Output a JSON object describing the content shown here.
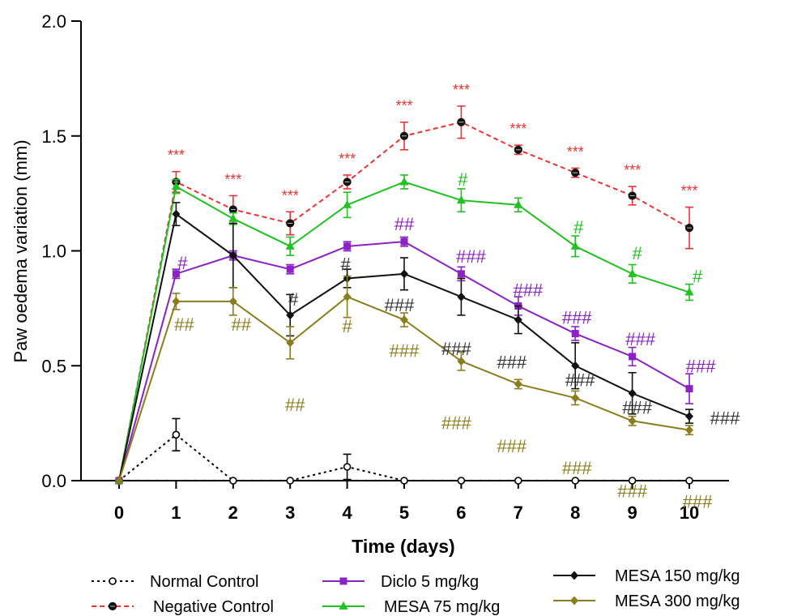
{
  "chart_data": {
    "type": "line",
    "title": "",
    "xlabel": "Time (days)",
    "ylabel": "Paw oedema variation (mm)",
    "ylim": [
      0,
      2.0
    ],
    "xlim": [
      0,
      10
    ],
    "y_ticks": [
      "0.0",
      "0.5",
      "1.0",
      "1.5",
      "2.0"
    ],
    "x_ticks": [
      "0",
      "1",
      "2",
      "3",
      "4",
      "5",
      "6",
      "7",
      "8",
      "9",
      "10"
    ],
    "x": [
      0,
      1,
      2,
      3,
      4,
      5,
      6,
      7,
      8,
      9,
      10
    ],
    "grid": false,
    "legend_position": "bottom",
    "series": [
      {
        "name": "Normal Control",
        "color": "#000000",
        "line": "dotted",
        "marker": "open-circle",
        "values": [
          0,
          0.2,
          0,
          0,
          0.06,
          0,
          0,
          0,
          0,
          0,
          0
        ],
        "errors": [
          0,
          0.07,
          0,
          0,
          0.055,
          0,
          0,
          0,
          0,
          0,
          0
        ],
        "annotations": [
          "",
          "",
          "",
          "",
          "",
          "",
          "",
          "",
          "",
          "",
          ""
        ]
      },
      {
        "name": "Negative Control",
        "color": "#ee3333",
        "line": "dashed",
        "marker": "filled-circle",
        "values": [
          0,
          1.3,
          1.18,
          1.12,
          1.3,
          1.5,
          1.56,
          1.44,
          1.34,
          1.24,
          1.1
        ],
        "errors": [
          0,
          0.045,
          0.06,
          0.05,
          0.03,
          0.06,
          0.07,
          0.02,
          0.02,
          0.04,
          0.09
        ],
        "annotations": [
          "",
          "***",
          "***",
          "***",
          "***",
          "***",
          "***",
          "***",
          "***",
          "***",
          "***"
        ]
      },
      {
        "name": "Diclo 5 mg/kg",
        "color": "#8b22c4",
        "line": "solid",
        "marker": "square",
        "values": [
          0,
          0.9,
          0.98,
          0.92,
          1.02,
          1.04,
          0.9,
          0.76,
          0.64,
          0.54,
          0.4
        ],
        "errors": [
          0,
          0.02,
          0.02,
          0.02,
          0.02,
          0.02,
          0.03,
          0.04,
          0.03,
          0.04,
          0.065
        ],
        "annotations": [
          "",
          "#",
          "",
          "",
          "",
          "##",
          "###",
          "###",
          "###",
          "###",
          "###"
        ]
      },
      {
        "name": "MESA 75 mg/kg",
        "color": "#22c022",
        "line": "solid",
        "marker": "triangle",
        "values": [
          0,
          1.28,
          1.14,
          1.02,
          1.2,
          1.3,
          1.22,
          1.2,
          1.02,
          0.9,
          0.82
        ],
        "errors": [
          0,
          0.03,
          0.025,
          0.04,
          0.055,
          0.03,
          0.05,
          0.03,
          0.045,
          0.04,
          0.035
        ],
        "annotations": [
          "",
          "",
          "",
          "",
          "",
          "",
          "#",
          "",
          "#",
          "#",
          "#"
        ]
      },
      {
        "name": "MESA 150 mg/kg",
        "color": "#111111",
        "line": "solid",
        "marker": "diamond",
        "values": [
          0,
          1.16,
          0.98,
          0.72,
          0.88,
          0.9,
          0.8,
          0.7,
          0.5,
          0.38,
          0.28
        ],
        "errors": [
          0,
          0.05,
          0.14,
          0.09,
          0.04,
          0.07,
          0.08,
          0.06,
          0.1,
          0.09,
          0.03
        ],
        "annotations": [
          "",
          "",
          "",
          "#",
          "#",
          "###",
          "###",
          "###",
          "###",
          "###",
          "###"
        ]
      },
      {
        "name": "MESA 300 mg/kg",
        "color": "#8b7d1e",
        "line": "solid",
        "marker": "diamond",
        "values": [
          0,
          0.78,
          0.78,
          0.6,
          0.8,
          0.7,
          0.52,
          0.42,
          0.36,
          0.26,
          0.22
        ],
        "errors": [
          0,
          0.035,
          0.06,
          0.07,
          0.09,
          0.03,
          0.04,
          0.02,
          0.03,
          0.02,
          0.02
        ],
        "annotations": [
          "",
          "##",
          "##",
          "##",
          "#",
          "###",
          "###",
          "###",
          "###",
          "###",
          "###"
        ]
      }
    ]
  }
}
